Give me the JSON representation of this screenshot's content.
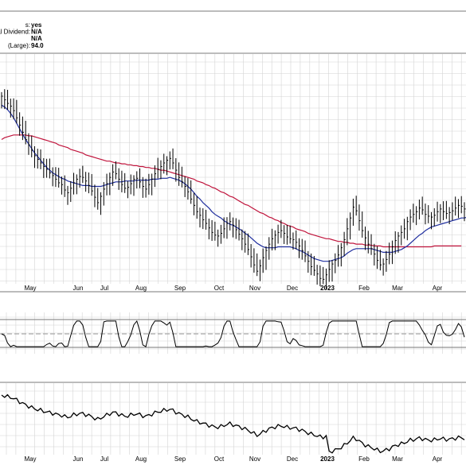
{
  "info_box": [
    {
      "label": "s:",
      "value": "yes"
    },
    {
      "label": "al Dividend:",
      "value": "N/A"
    },
    {
      "label": "",
      "value": "N/A"
    },
    {
      "label": "(Large):",
      "value": "94.0"
    }
  ],
  "colors": {
    "price": "#000000",
    "ma_short": "#1f2e9e",
    "ma_long": "#c0143c",
    "grid": "#d4d4d4",
    "panel_border": "#7a7a7a"
  },
  "chart_data": [
    {
      "type": "ohlc",
      "panel": "price",
      "x_labels": [
        "May",
        "Jun",
        "Jul",
        "Aug",
        "Sep",
        "Oct",
        "Nov",
        "Dec",
        "2023",
        "Feb",
        "Mar",
        "Apr"
      ],
      "bold_x_label": "2023",
      "grid": true,
      "close": [
        100,
        99.6,
        99.2,
        98.9,
        98.4,
        97.6,
        96.8,
        96,
        95.2,
        94.6,
        94,
        93.4,
        93,
        92.6,
        92.2,
        91.9,
        91.5,
        91.2,
        90.8,
        90.4,
        90.2,
        89.6,
        89.3,
        89.8,
        90.4,
        90.8,
        91.1,
        91,
        90.6,
        90.1,
        89.5,
        88.8,
        88.2,
        88.9,
        89.7,
        90.3,
        91,
        91.6,
        91.4,
        90.8,
        90.2,
        89.8,
        89.9,
        90.3,
        90.8,
        90.9,
        90.5,
        90,
        89.7,
        90.2,
        90.8,
        91.4,
        91.9,
        92.2,
        92.6,
        92.9,
        93.1,
        92.6,
        91.8,
        91,
        90.5,
        90,
        89.4,
        88.6,
        87.9,
        87.2,
        86.8,
        86.3,
        85.9,
        85.4,
        84.9,
        84.6,
        84.5,
        84.8,
        85.3,
        85.9,
        86.1,
        85.7,
        85.2,
        84.7,
        84.2,
        83.6,
        83,
        82.2,
        81.3,
        80.6,
        81.2,
        82.1,
        82.9,
        83.6,
        84.2,
        84.6,
        84.9,
        85.1,
        84.8,
        84.4,
        84.2,
        84.1,
        83.8,
        83.4,
        82.9,
        82.3,
        81.7,
        81.1,
        80.7,
        80.3,
        79.8,
        79.7,
        80.2,
        80.8,
        81.4,
        81.8,
        82.4,
        83.2,
        84.1,
        85.3,
        86.5,
        87.7,
        87.3,
        86.2,
        85.1,
        84.3,
        83.6,
        83.1,
        82.5,
        81.8,
        81.3,
        81.4,
        81.9,
        82.5,
        83.3,
        84,
        84.5,
        84.9,
        85.3,
        86.1,
        86.6,
        86.9,
        87.2,
        87.6,
        87.4,
        86.9,
        86.7,
        86.6,
        86.8,
        87.2,
        87.5,
        87.2,
        87,
        87.1,
        87.3,
        87.6,
        87.9,
        87.8,
        87.5
      ],
      "ma_short": [
        99,
        98.8,
        98.5,
        98.1,
        97.6,
        97,
        96.4,
        95.8,
        95.2,
        94.7,
        94.2,
        93.7,
        93.3,
        92.9,
        92.5,
        92.1,
        91.8,
        91.5,
        91.3,
        91.1,
        90.9,
        90.8,
        90.6,
        90.5,
        90.4,
        90.3,
        90.2,
        90.1,
        90.1,
        90.1,
        90,
        90,
        90,
        90,
        90.1,
        90.2,
        90.3,
        90.4,
        90.5,
        90.5,
        90.5,
        90.6,
        90.6,
        90.6,
        90.6,
        90.7,
        90.7,
        90.7,
        90.7,
        90.7,
        90.8,
        90.8,
        90.8,
        90.9,
        90.9,
        90.9,
        91,
        90.9,
        90.8,
        90.7,
        90.5,
        90.3,
        90,
        89.7,
        89.3,
        88.9,
        88.6,
        88.2,
        87.9,
        87.6,
        87.2,
        86.9,
        86.7,
        86.5,
        86.2,
        86,
        85.8,
        85.7,
        85.5,
        85.3,
        85.1,
        84.8,
        84.6,
        84.3,
        84,
        83.7,
        83.5,
        83.3,
        83.2,
        83.2,
        83.2,
        83.2,
        83.3,
        83.3,
        83.3,
        83.3,
        83.3,
        83.2,
        83.1,
        82.9,
        82.8,
        82.6,
        82.4,
        82.2,
        82,
        81.9,
        81.8,
        81.7,
        81.7,
        81.7,
        81.8,
        81.9,
        82,
        82.1,
        82.3,
        82.6,
        82.8,
        83,
        83.1,
        83.1,
        83.1,
        83.1,
        83.1,
        83.1,
        83,
        82.9,
        82.8,
        82.7,
        82.7,
        82.7,
        82.7,
        82.8,
        82.9,
        83,
        83.2,
        83.4,
        83.7,
        84,
        84.3,
        84.6,
        84.8,
        85.1,
        85.3,
        85.5,
        85.6,
        85.7,
        85.8,
        85.9,
        86,
        86.1,
        86.2,
        86.3,
        86.4,
        86.5,
        86.5,
        86.6
      ],
      "ma_long": [
        95.2,
        95.4,
        95.5,
        95.6,
        95.7,
        95.7,
        95.7,
        95.7,
        95.7,
        95.6,
        95.6,
        95.5,
        95.4,
        95.3,
        95.2,
        95.1,
        95,
        94.9,
        94.8,
        94.6,
        94.5,
        94.4,
        94.3,
        94.1,
        94,
        93.9,
        93.8,
        93.7,
        93.5,
        93.4,
        93.3,
        93.2,
        93.1,
        93,
        92.9,
        92.8,
        92.8,
        92.7,
        92.6,
        92.6,
        92.5,
        92.5,
        92.4,
        92.4,
        92.3,
        92.3,
        92.2,
        92.2,
        92.1,
        92.1,
        92,
        92,
        91.9,
        91.8,
        91.8,
        91.7,
        91.6,
        91.5,
        91.4,
        91.3,
        91.2,
        91.1,
        91,
        90.9,
        90.8,
        90.6,
        90.5,
        90.4,
        90.2,
        90.1,
        89.9,
        89.8,
        89.6,
        89.4,
        89.3,
        89.1,
        88.9,
        88.8,
        88.6,
        88.4,
        88.2,
        88,
        87.9,
        87.7,
        87.5,
        87.3,
        87.1,
        87,
        86.8,
        86.6,
        86.5,
        86.3,
        86.2,
        86,
        85.9,
        85.7,
        85.6,
        85.5,
        85.3,
        85.2,
        85.1,
        85,
        84.8,
        84.7,
        84.6,
        84.5,
        84.4,
        84.3,
        84.2,
        84.2,
        84.1,
        84,
        83.9,
        83.9,
        83.8,
        83.8,
        83.7,
        83.7,
        83.6,
        83.6,
        83.6,
        83.5,
        83.5,
        83.5,
        83.4,
        83.4,
        83.4,
        83.3,
        83.3,
        83.3,
        83.3,
        83.3,
        83.3,
        83.3,
        83.3,
        83.3,
        83.3,
        83.3,
        83.3,
        83.3,
        83.3,
        83.3,
        83.3,
        83.3,
        83.4,
        83.4,
        83.4,
        83.4,
        83.4,
        83.4,
        83.4,
        83.4,
        83.4,
        83.4
      ]
    },
    {
      "type": "line",
      "panel": "oscillator",
      "grid": true,
      "reference_lines": "upper, lower, dashed middle"
    },
    {
      "type": "line",
      "panel": "relative",
      "x_labels": [
        "May",
        "Jun",
        "Jul",
        "Aug",
        "Sep",
        "Oct",
        "Nov",
        "Dec",
        "2023",
        "Feb",
        "Mar",
        "Apr"
      ],
      "bold_x_label": "2023",
      "grid": true
    }
  ]
}
